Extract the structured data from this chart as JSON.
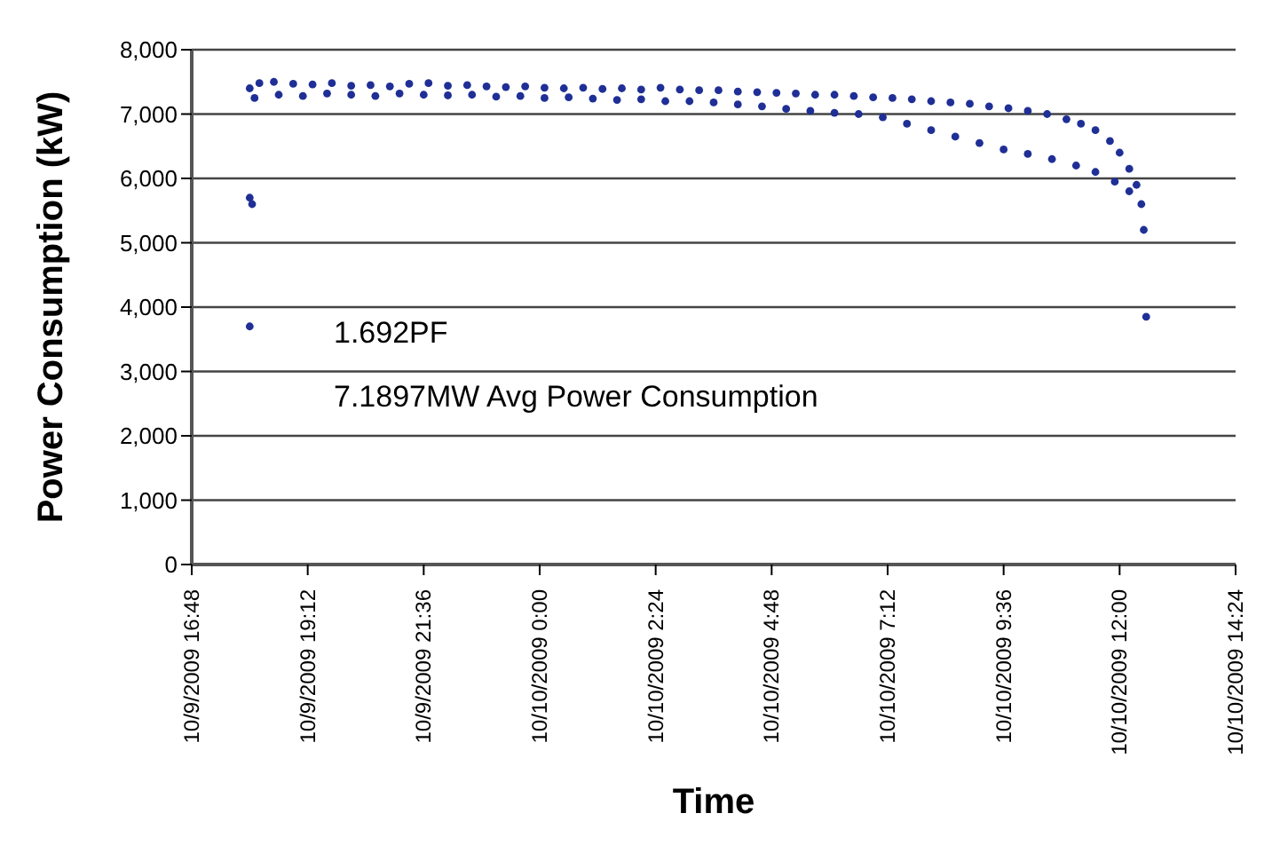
{
  "chart_data": {
    "type": "scatter",
    "xlabel": "Time",
    "ylabel": "Power Consumption (kW)",
    "annotations": [
      "1.692PF",
      "7.1897MW Avg Power Consumption"
    ],
    "xlim": [
      "2009-10-09T16:48",
      "2009-10-10T14:24"
    ],
    "xticks": [
      {
        "value": "2009-10-09T16:48",
        "label": "10/9/2009 16:48"
      },
      {
        "value": "2009-10-09T19:12",
        "label": "10/9/2009 19:12"
      },
      {
        "value": "2009-10-09T21:36",
        "label": "10/9/2009 21:36"
      },
      {
        "value": "2009-10-10T00:00",
        "label": "10/10/2009 0:00"
      },
      {
        "value": "2009-10-10T02:24",
        "label": "10/10/2009 2:24"
      },
      {
        "value": "2009-10-10T04:48",
        "label": "10/10/2009 4:48"
      },
      {
        "value": "2009-10-10T07:12",
        "label": "10/10/2009 7:12"
      },
      {
        "value": "2009-10-10T09:36",
        "label": "10/10/2009 9:36"
      },
      {
        "value": "2009-10-10T12:00",
        "label": "10/10/2009 12:00"
      },
      {
        "value": "2009-10-10T14:24",
        "label": "10/10/2009 14:24"
      }
    ],
    "ylim": [
      0,
      8000
    ],
    "yticks": [
      {
        "value": 0,
        "label": "0"
      },
      {
        "value": 1000,
        "label": "1,000"
      },
      {
        "value": 2000,
        "label": "2,000"
      },
      {
        "value": 3000,
        "label": "3,000"
      },
      {
        "value": 4000,
        "label": "4,000"
      },
      {
        "value": 5000,
        "label": "5,000"
      },
      {
        "value": 6000,
        "label": "6,000"
      },
      {
        "value": 7000,
        "label": "7,000"
      },
      {
        "value": 8000,
        "label": "8,000"
      }
    ],
    "grid": "y",
    "marker": "circle",
    "series": [
      {
        "color": "#1f2f96",
        "x": [
          "2009-10-09T18:00",
          "2009-10-09T18:12",
          "2009-10-09T18:30",
          "2009-10-09T18:54",
          "2009-10-09T19:18",
          "2009-10-09T19:42",
          "2009-10-09T20:06",
          "2009-10-09T20:30",
          "2009-10-09T20:54",
          "2009-10-09T21:18",
          "2009-10-09T21:42",
          "2009-10-09T22:06",
          "2009-10-09T22:30",
          "2009-10-09T22:54",
          "2009-10-09T23:18",
          "2009-10-09T23:42",
          "2009-10-10T00:06",
          "2009-10-10T00:30",
          "2009-10-10T00:54",
          "2009-10-10T01:18",
          "2009-10-10T01:42",
          "2009-10-10T02:06",
          "2009-10-10T02:30",
          "2009-10-10T02:54",
          "2009-10-10T03:18",
          "2009-10-10T03:42",
          "2009-10-10T04:06",
          "2009-10-10T04:30",
          "2009-10-10T04:54",
          "2009-10-10T05:18",
          "2009-10-10T05:42",
          "2009-10-10T06:06",
          "2009-10-10T06:30",
          "2009-10-10T06:54",
          "2009-10-10T07:18",
          "2009-10-10T07:42",
          "2009-10-10T08:06",
          "2009-10-10T08:30",
          "2009-10-10T08:54",
          "2009-10-10T09:18",
          "2009-10-10T09:42",
          "2009-10-10T10:06",
          "2009-10-10T10:30",
          "2009-10-10T10:54",
          "2009-10-10T11:12",
          "2009-10-10T11:30",
          "2009-10-10T11:48",
          "2009-10-10T12:00",
          "2009-10-10T12:12",
          "2009-10-10T12:21",
          "2009-10-10T12:27",
          "2009-10-10T12:30"
        ],
        "values": [
          7400,
          7480,
          7500,
          7470,
          7460,
          7480,
          7440,
          7450,
          7430,
          7470,
          7480,
          7440,
          7450,
          7430,
          7420,
          7430,
          7410,
          7400,
          7410,
          7390,
          7400,
          7380,
          7410,
          7380,
          7370,
          7370,
          7350,
          7340,
          7330,
          7320,
          7300,
          7300,
          7280,
          7260,
          7250,
          7230,
          7200,
          7180,
          7160,
          7120,
          7090,
          7050,
          7000,
          6920,
          6850,
          6750,
          6580,
          6400,
          6150,
          5900,
          5600,
          5200
        ]
      },
      {
        "color": "#1f2f96",
        "x": [
          "2009-10-09T18:06",
          "2009-10-09T18:36",
          "2009-10-09T19:06",
          "2009-10-09T19:36",
          "2009-10-09T20:06",
          "2009-10-09T20:36",
          "2009-10-09T21:06",
          "2009-10-09T21:36",
          "2009-10-09T22:06",
          "2009-10-09T22:36",
          "2009-10-09T23:06",
          "2009-10-09T23:36",
          "2009-10-10T00:06",
          "2009-10-10T00:36",
          "2009-10-10T01:06",
          "2009-10-10T01:36",
          "2009-10-10T02:06",
          "2009-10-10T02:36",
          "2009-10-10T03:06",
          "2009-10-10T03:36",
          "2009-10-10T04:06",
          "2009-10-10T04:36",
          "2009-10-10T05:06",
          "2009-10-10T05:36",
          "2009-10-10T06:06",
          "2009-10-10T06:36",
          "2009-10-10T07:06",
          "2009-10-10T07:36",
          "2009-10-10T08:06",
          "2009-10-10T08:36",
          "2009-10-10T09:06",
          "2009-10-10T09:36",
          "2009-10-10T10:06",
          "2009-10-10T10:36",
          "2009-10-10T11:06",
          "2009-10-10T11:30",
          "2009-10-10T11:54",
          "2009-10-10T12:12"
        ],
        "values": [
          7250,
          7300,
          7280,
          7320,
          7300,
          7280,
          7320,
          7300,
          7290,
          7300,
          7270,
          7280,
          7250,
          7260,
          7240,
          7220,
          7230,
          7200,
          7200,
          7180,
          7150,
          7120,
          7080,
          7050,
          7020,
          7000,
          6950,
          6850,
          6750,
          6650,
          6550,
          6450,
          6380,
          6300,
          6200,
          6100,
          5950,
          5800
        ]
      },
      {
        "color": "#1f2f96",
        "x": [
          "2009-10-09T18:00",
          "2009-10-09T18:03",
          "2009-10-09T18:00",
          "2009-10-10T12:33"
        ],
        "values": [
          5700,
          5600,
          3700,
          3850
        ]
      }
    ]
  }
}
